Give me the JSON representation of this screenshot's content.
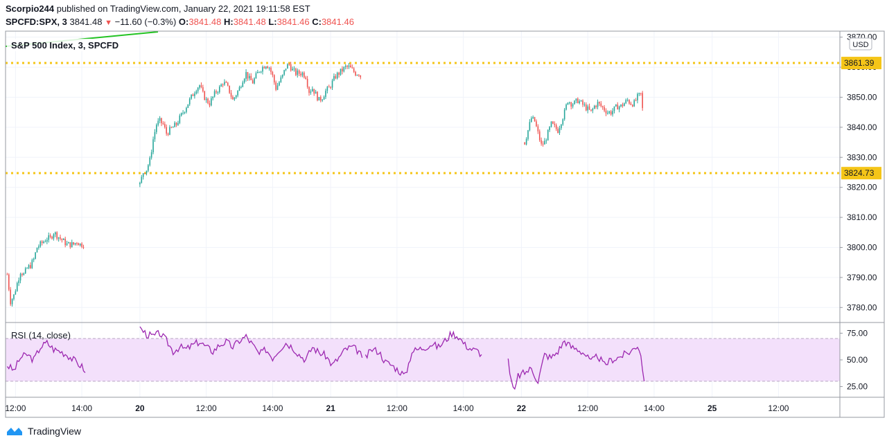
{
  "header": {
    "publisher": "Scorpio244",
    "published_text": "published on TradingView.com, January 22, 2021 19:11:58 EST",
    "symbol": "SPCFD:SPX, 3",
    "last": "3841.48",
    "change": "−11.60 (−0.3%)",
    "o_label": "O:",
    "o": "3841.48",
    "h_label": "H:",
    "h": "3841.48",
    "l_label": "L:",
    "l": "3841.46",
    "c_label": "C:",
    "c": "3841.46"
  },
  "legend": "S&P 500 Index, 3, SPCFD",
  "currency": "USD",
  "rsi_label": "RSI (14, close)",
  "footer": {
    "brand": "TradingView"
  },
  "colors": {
    "up": "#26a69a",
    "down": "#ef5350",
    "level": "#f5c518",
    "rsi": "#9c27b0",
    "rsi_band": "#f3e0fb",
    "trend": "#22c322"
  },
  "chart_data": [
    {
      "type": "candlestick",
      "title": "S&P 500 Index, 3, SPCFD",
      "ylim": [
        3775,
        3872
      ],
      "yticks": [
        3780,
        3790,
        3800,
        3810,
        3820,
        3830,
        3840,
        3850,
        3860,
        3870
      ],
      "ytick_labels": [
        "3780.00",
        "3790.00",
        "3800.00",
        "3810.00",
        "3820.00",
        "3830.00",
        "3840.00",
        "3850.00",
        "3860.00",
        "3870.00"
      ],
      "xticks": [
        {
          "label": "12:00",
          "x": 5
        },
        {
          "label": "14:00",
          "x": 45
        },
        {
          "label": "20",
          "x": 80
        },
        {
          "label": "12:00",
          "x": 120
        },
        {
          "label": "14:00",
          "x": 160
        },
        {
          "label": "21",
          "x": 195
        },
        {
          "label": "12:00",
          "x": 235
        },
        {
          "label": "14:00",
          "x": 275
        },
        {
          "label": "22",
          "x": 310
        },
        {
          "label": "12:00",
          "x": 350
        },
        {
          "label": "14:00",
          "x": 390
        },
        {
          "label": "25",
          "x": 425
        },
        {
          "label": "12:00",
          "x": 465
        }
      ],
      "x_range": [
        -1,
        502
      ],
      "levels": [
        {
          "label": "3861.39",
          "value": 3861.39
        },
        {
          "label": "3824.73",
          "value": 3824.73
        }
      ],
      "series": [
        {
          "start_x": 0,
          "points": [
            [
              0,
              3791
            ],
            [
              2,
              3782
            ],
            [
              4,
              3784
            ],
            [
              6,
              3788
            ],
            [
              8,
              3792
            ],
            [
              10,
              3791
            ],
            [
              12,
              3793
            ],
            [
              14,
              3794
            ],
            [
              16,
              3796
            ],
            [
              18,
              3800
            ],
            [
              20,
              3801
            ],
            [
              22,
              3802
            ],
            [
              24,
              3803
            ],
            [
              26,
              3803
            ],
            [
              28,
              3805
            ],
            [
              30,
              3804
            ],
            [
              32,
              3803
            ],
            [
              34,
              3802
            ],
            [
              36,
              3801
            ],
            [
              38,
              3801
            ],
            [
              40,
              3801
            ],
            [
              42,
              3802
            ],
            [
              44,
              3801
            ],
            [
              46,
              3801
            ],
            [
              47,
              3799
            ]
          ]
        },
        {
          "start_x": 80,
          "points": [
            [
              80,
              3821
            ],
            [
              82,
              3825
            ],
            [
              84,
              3826
            ],
            [
              86,
              3829
            ],
            [
              88,
              3836
            ],
            [
              90,
              3841
            ],
            [
              92,
              3842
            ],
            [
              94,
              3841
            ],
            [
              96,
              3838
            ],
            [
              98,
              3839
            ],
            [
              100,
              3840
            ],
            [
              102,
              3841
            ],
            [
              104,
              3843
            ],
            [
              106,
              3845
            ],
            [
              108,
              3847
            ],
            [
              110,
              3849
            ],
            [
              112,
              3851
            ],
            [
              114,
              3853
            ],
            [
              116,
              3854
            ],
            [
              118,
              3851
            ],
            [
              120,
              3849
            ],
            [
              122,
              3848
            ],
            [
              124,
              3850
            ],
            [
              126,
              3852
            ],
            [
              128,
              3853
            ],
            [
              130,
              3855
            ],
            [
              132,
              3854
            ],
            [
              134,
              3852
            ],
            [
              136,
              3849
            ],
            [
              138,
              3851
            ],
            [
              140,
              3853
            ],
            [
              142,
              3856
            ],
            [
              144,
              3858
            ],
            [
              146,
              3856
            ],
            [
              148,
              3855
            ],
            [
              150,
              3857
            ],
            [
              152,
              3859
            ],
            [
              154,
              3860
            ],
            [
              156,
              3861
            ],
            [
              158,
              3860
            ],
            [
              160,
              3857
            ],
            [
              162,
              3853
            ],
            [
              164,
              3855
            ],
            [
              166,
              3857
            ],
            [
              168,
              3860
            ],
            [
              170,
              3861
            ],
            [
              172,
              3859
            ],
            [
              174,
              3858
            ],
            [
              176,
              3858
            ],
            [
              178,
              3858
            ],
            [
              180,
              3857
            ],
            [
              182,
              3852
            ],
            [
              184,
              3853
            ],
            [
              186,
              3851
            ],
            [
              188,
              3849
            ],
            [
              190,
              3850
            ],
            [
              192,
              3852
            ],
            [
              194,
              3853
            ],
            [
              196,
              3855
            ],
            [
              198,
              3857
            ],
            [
              200,
              3858
            ],
            [
              202,
              3859
            ],
            [
              204,
              3860
            ],
            [
              206,
              3860
            ],
            [
              208,
              3859
            ],
            [
              210,
              3858
            ],
            [
              212,
              3858
            ],
            [
              214,
              3856
            ]
          ]
        },
        {
          "start_x": 312,
          "points": [
            [
              312,
              3835
            ],
            [
              314,
              3839
            ],
            [
              316,
              3843
            ],
            [
              318,
              3842
            ],
            [
              320,
              3838
            ],
            [
              322,
              3834
            ],
            [
              324,
              3835
            ],
            [
              326,
              3838
            ],
            [
              328,
              3841
            ],
            [
              330,
              3840
            ],
            [
              332,
              3839
            ],
            [
              334,
              3842
            ],
            [
              336,
              3845
            ],
            [
              338,
              3849
            ],
            [
              340,
              3848
            ],
            [
              342,
              3848
            ],
            [
              344,
              3849
            ],
            [
              346,
              3848
            ],
            [
              348,
              3847
            ],
            [
              350,
              3846
            ],
            [
              352,
              3845
            ],
            [
              354,
              3847
            ],
            [
              356,
              3848
            ],
            [
              358,
              3847
            ],
            [
              360,
              3846
            ],
            [
              362,
              3845
            ],
            [
              364,
              3845
            ],
            [
              366,
              3846
            ],
            [
              368,
              3847
            ],
            [
              370,
              3847
            ],
            [
              372,
              3848
            ],
            [
              374,
              3849
            ],
            [
              376,
              3848
            ],
            [
              378,
              3848
            ],
            [
              380,
              3850
            ],
            [
              382,
              3851
            ],
            [
              383,
              3846
            ],
            [
              384,
              3842
            ]
          ]
        }
      ]
    },
    {
      "type": "line",
      "title": "RSI (14, close)",
      "ylim": [
        15,
        85
      ],
      "yticks": [
        25,
        50,
        75
      ],
      "ytick_labels": [
        "25.00",
        "50.00",
        "75.00"
      ],
      "band": [
        30,
        70
      ],
      "series": [
        {
          "start_x": 0,
          "points": [
            [
              0,
              45
            ],
            [
              4,
              40
            ],
            [
              8,
              52
            ],
            [
              12,
              55
            ],
            [
              16,
              50
            ],
            [
              20,
              62
            ],
            [
              24,
              66
            ],
            [
              28,
              60
            ],
            [
              32,
              58
            ],
            [
              36,
              55
            ],
            [
              40,
              50
            ],
            [
              44,
              45
            ],
            [
              46,
              42
            ],
            [
              47,
              38
            ]
          ]
        },
        {
          "start_x": 80,
          "points": [
            [
              80,
              80
            ],
            [
              84,
              74
            ],
            [
              88,
              72
            ],
            [
              92,
              75
            ],
            [
              96,
              68
            ],
            [
              100,
              58
            ],
            [
              104,
              62
            ],
            [
              108,
              60
            ],
            [
              112,
              64
            ],
            [
              116,
              67
            ],
            [
              120,
              62
            ],
            [
              124,
              58
            ],
            [
              128,
              64
            ],
            [
              132,
              67
            ],
            [
              136,
              62
            ],
            [
              140,
              68
            ],
            [
              144,
              72
            ],
            [
              148,
              64
            ],
            [
              152,
              55
            ],
            [
              156,
              60
            ],
            [
              160,
              52
            ],
            [
              164,
              60
            ],
            [
              168,
              66
            ],
            [
              172,
              62
            ],
            [
              176,
              55
            ],
            [
              180,
              50
            ],
            [
              184,
              62
            ],
            [
              188,
              57
            ],
            [
              192,
              54
            ],
            [
              196,
              45
            ],
            [
              200,
              52
            ],
            [
              204,
              60
            ],
            [
              208,
              62
            ],
            [
              212,
              58
            ],
            [
              214,
              52
            ]
          ]
        },
        {
          "start_x": 216,
          "points": [
            [
              216,
              52
            ],
            [
              220,
              60
            ],
            [
              224,
              58
            ],
            [
              228,
              48
            ],
            [
              232,
              45
            ],
            [
              236,
              40
            ],
            [
              240,
              35
            ],
            [
              244,
              58
            ],
            [
              248,
              60
            ],
            [
              252,
              62
            ],
            [
              256,
              65
            ],
            [
              260,
              62
            ],
            [
              264,
              68
            ],
            [
              268,
              75
            ],
            [
              272,
              72
            ],
            [
              276,
              64
            ],
            [
              280,
              60
            ],
            [
              284,
              58
            ],
            [
              286,
              55
            ]
          ]
        },
        {
          "start_x": 302,
          "points": [
            [
              302,
              50
            ],
            [
              304,
              28
            ],
            [
              306,
              20
            ],
            [
              308,
              35
            ],
            [
              312,
              38
            ],
            [
              316,
              42
            ],
            [
              320,
              30
            ],
            [
              324,
              55
            ],
            [
              328,
              52
            ],
            [
              332,
              58
            ],
            [
              336,
              68
            ],
            [
              340,
              62
            ],
            [
              344,
              60
            ],
            [
              348,
              56
            ],
            [
              352,
              48
            ],
            [
              356,
              54
            ],
            [
              360,
              45
            ],
            [
              364,
              50
            ],
            [
              368,
              52
            ],
            [
              372,
              55
            ],
            [
              376,
              58
            ],
            [
              380,
              64
            ],
            [
              382,
              56
            ],
            [
              383,
              40
            ],
            [
              384,
              30
            ]
          ]
        }
      ]
    }
  ]
}
